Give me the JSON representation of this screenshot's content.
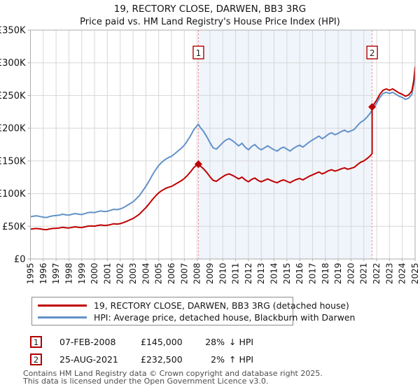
{
  "header": {
    "title": "19, RECTORY CLOSE, DARWEN, BB3 3RG",
    "subtitle": "Price paid vs. HM Land Registry's House Price Index (HPI)"
  },
  "chart_data": {
    "type": "line",
    "x_range": [
      1995,
      2025
    ],
    "y_range": [
      0,
      350000
    ],
    "x_ticks": [
      1995,
      1996,
      1997,
      1998,
      1999,
      2000,
      2001,
      2002,
      2003,
      2004,
      2005,
      2006,
      2007,
      2008,
      2009,
      2010,
      2011,
      2012,
      2013,
      2014,
      2015,
      2016,
      2017,
      2018,
      2019,
      2020,
      2021,
      2022,
      2023,
      2024,
      2025
    ],
    "y_ticks": [
      {
        "value": 0,
        "label": "£0"
      },
      {
        "value": 50000,
        "label": "£50K"
      },
      {
        "value": 100000,
        "label": "£100K"
      },
      {
        "value": 150000,
        "label": "£150K"
      },
      {
        "value": 200000,
        "label": "£200K"
      },
      {
        "value": 250000,
        "label": "£250K"
      },
      {
        "value": 300000,
        "label": "£300K"
      },
      {
        "value": 350000,
        "label": "£350K"
      }
    ],
    "grid": true,
    "legend_position": "bottom",
    "shaded_region": {
      "from": 2008.1,
      "to": 2021.65,
      "color": "#f0f4fb"
    },
    "event_lines": [
      {
        "label": "1",
        "x": 2008.1
      },
      {
        "label": "2",
        "x": 2021.65
      }
    ],
    "markers": [
      {
        "x": 2008.1,
        "y": 145000
      },
      {
        "x": 2021.65,
        "y": 232500
      }
    ],
    "series": [
      {
        "name": "HPI: Average price, detached house, Blackburn with Darwen",
        "color": "#6292c8",
        "points": [
          [
            1995.0,
            64500
          ],
          [
            1995.25,
            65500
          ],
          [
            1995.5,
            66000
          ],
          [
            1995.75,
            65000
          ],
          [
            1996.0,
            64000
          ],
          [
            1996.25,
            63500
          ],
          [
            1996.5,
            65000
          ],
          [
            1996.75,
            66000
          ],
          [
            1997.0,
            66500
          ],
          [
            1997.25,
            67000
          ],
          [
            1997.5,
            68500
          ],
          [
            1997.75,
            67500
          ],
          [
            1998.0,
            67000
          ],
          [
            1998.25,
            68500
          ],
          [
            1998.5,
            69500
          ],
          [
            1998.75,
            68500
          ],
          [
            1999.0,
            68000
          ],
          [
            1999.25,
            69500
          ],
          [
            1999.5,
            71000
          ],
          [
            1999.75,
            71500
          ],
          [
            2000.0,
            71000
          ],
          [
            2000.25,
            72500
          ],
          [
            2000.5,
            73500
          ],
          [
            2000.75,
            72500
          ],
          [
            2001.0,
            73000
          ],
          [
            2001.25,
            74500
          ],
          [
            2001.5,
            76000
          ],
          [
            2001.75,
            75500
          ],
          [
            2002.0,
            76500
          ],
          [
            2002.25,
            78500
          ],
          [
            2002.5,
            81500
          ],
          [
            2002.75,
            84500
          ],
          [
            2003.0,
            87500
          ],
          [
            2003.25,
            92000
          ],
          [
            2003.5,
            97000
          ],
          [
            2003.75,
            104000
          ],
          [
            2004.0,
            111000
          ],
          [
            2004.25,
            119000
          ],
          [
            2004.5,
            128000
          ],
          [
            2004.75,
            136000
          ],
          [
            2005.0,
            143000
          ],
          [
            2005.25,
            148000
          ],
          [
            2005.5,
            152000
          ],
          [
            2005.75,
            155000
          ],
          [
            2006.0,
            157000
          ],
          [
            2006.25,
            161000
          ],
          [
            2006.5,
            165000
          ],
          [
            2006.75,
            169000
          ],
          [
            2007.0,
            174000
          ],
          [
            2007.25,
            181000
          ],
          [
            2007.5,
            189000
          ],
          [
            2007.75,
            198000
          ],
          [
            2008.0,
            204000
          ],
          [
            2008.1,
            206000
          ],
          [
            2008.25,
            201000
          ],
          [
            2008.5,
            195000
          ],
          [
            2008.75,
            187000
          ],
          [
            2009.0,
            178000
          ],
          [
            2009.25,
            170000
          ],
          [
            2009.5,
            168000
          ],
          [
            2009.75,
            173000
          ],
          [
            2010.0,
            178000
          ],
          [
            2010.25,
            182000
          ],
          [
            2010.5,
            184000
          ],
          [
            2010.75,
            181000
          ],
          [
            2011.0,
            177000
          ],
          [
            2011.25,
            173000
          ],
          [
            2011.5,
            177000
          ],
          [
            2011.75,
            171000
          ],
          [
            2012.0,
            167000
          ],
          [
            2012.25,
            172000
          ],
          [
            2012.5,
            175000
          ],
          [
            2012.75,
            170000
          ],
          [
            2013.0,
            167000
          ],
          [
            2013.25,
            170000
          ],
          [
            2013.5,
            173000
          ],
          [
            2013.75,
            170000
          ],
          [
            2014.0,
            167000
          ],
          [
            2014.25,
            165000
          ],
          [
            2014.5,
            169000
          ],
          [
            2014.75,
            171000
          ],
          [
            2015.0,
            168000
          ],
          [
            2015.25,
            165000
          ],
          [
            2015.5,
            169000
          ],
          [
            2015.75,
            172000
          ],
          [
            2016.0,
            174000
          ],
          [
            2016.25,
            171000
          ],
          [
            2016.5,
            175000
          ],
          [
            2016.75,
            179000
          ],
          [
            2017.0,
            182000
          ],
          [
            2017.25,
            185000
          ],
          [
            2017.5,
            188000
          ],
          [
            2017.75,
            184000
          ],
          [
            2018.0,
            187000
          ],
          [
            2018.25,
            191000
          ],
          [
            2018.5,
            193000
          ],
          [
            2018.75,
            190000
          ],
          [
            2019.0,
            192000
          ],
          [
            2019.25,
            195000
          ],
          [
            2019.5,
            197000
          ],
          [
            2019.75,
            194000
          ],
          [
            2020.0,
            196000
          ],
          [
            2020.25,
            198000
          ],
          [
            2020.5,
            204000
          ],
          [
            2020.75,
            209000
          ],
          [
            2021.0,
            212000
          ],
          [
            2021.25,
            217000
          ],
          [
            2021.5,
            223000
          ],
          [
            2021.65,
            228000
          ],
          [
            2021.75,
            231000
          ],
          [
            2022.0,
            238000
          ],
          [
            2022.25,
            247000
          ],
          [
            2022.5,
            253000
          ],
          [
            2022.75,
            255000
          ],
          [
            2023.0,
            253000
          ],
          [
            2023.25,
            255000
          ],
          [
            2023.5,
            252000
          ],
          [
            2023.75,
            249000
          ],
          [
            2024.0,
            247000
          ],
          [
            2024.25,
            244000
          ],
          [
            2024.5,
            246000
          ],
          [
            2024.75,
            252000
          ],
          [
            2024.9,
            268000
          ],
          [
            2025.0,
            288000
          ]
        ]
      },
      {
        "name": "19, RECTORY CLOSE, DARWEN, BB3 3RG (detached house)",
        "color": "#c00000",
        "points": [
          [
            1995.0,
            45600
          ],
          [
            1995.25,
            46300
          ],
          [
            1995.5,
            46700
          ],
          [
            1995.75,
            46000
          ],
          [
            1996.0,
            45300
          ],
          [
            1996.25,
            44900
          ],
          [
            1996.5,
            46000
          ],
          [
            1996.75,
            46700
          ],
          [
            1997.0,
            47000
          ],
          [
            1997.25,
            47400
          ],
          [
            1997.5,
            48400
          ],
          [
            1997.75,
            47700
          ],
          [
            1998.0,
            47400
          ],
          [
            1998.25,
            48400
          ],
          [
            1998.5,
            49200
          ],
          [
            1998.75,
            48400
          ],
          [
            1999.0,
            48100
          ],
          [
            1999.25,
            49200
          ],
          [
            1999.5,
            50200
          ],
          [
            1999.75,
            50600
          ],
          [
            2000.0,
            50200
          ],
          [
            2000.25,
            51300
          ],
          [
            2000.5,
            52000
          ],
          [
            2000.75,
            51300
          ],
          [
            2001.0,
            51600
          ],
          [
            2001.25,
            52700
          ],
          [
            2001.5,
            53800
          ],
          [
            2001.75,
            53400
          ],
          [
            2002.0,
            54100
          ],
          [
            2002.25,
            55500
          ],
          [
            2002.5,
            57600
          ],
          [
            2002.75,
            59800
          ],
          [
            2003.0,
            61900
          ],
          [
            2003.25,
            65100
          ],
          [
            2003.5,
            68600
          ],
          [
            2003.75,
            73600
          ],
          [
            2004.0,
            78500
          ],
          [
            2004.25,
            84200
          ],
          [
            2004.5,
            90500
          ],
          [
            2004.75,
            96200
          ],
          [
            2005.0,
            101100
          ],
          [
            2005.25,
            104700
          ],
          [
            2005.5,
            107500
          ],
          [
            2005.75,
            109600
          ],
          [
            2006.0,
            111000
          ],
          [
            2006.25,
            113900
          ],
          [
            2006.5,
            116700
          ],
          [
            2006.75,
            119500
          ],
          [
            2007.0,
            123100
          ],
          [
            2007.25,
            128000
          ],
          [
            2007.5,
            133700
          ],
          [
            2007.75,
            140000
          ],
          [
            2008.0,
            144300
          ],
          [
            2008.1,
            145000
          ],
          [
            2008.25,
            142200
          ],
          [
            2008.5,
            137900
          ],
          [
            2008.75,
            132300
          ],
          [
            2009.0,
            125900
          ],
          [
            2009.25,
            120200
          ],
          [
            2009.5,
            118800
          ],
          [
            2009.75,
            122400
          ],
          [
            2010.0,
            125900
          ],
          [
            2010.25,
            128700
          ],
          [
            2010.5,
            130200
          ],
          [
            2010.75,
            128000
          ],
          [
            2011.0,
            125200
          ],
          [
            2011.25,
            122400
          ],
          [
            2011.5,
            125200
          ],
          [
            2011.75,
            121000
          ],
          [
            2012.0,
            118100
          ],
          [
            2012.25,
            121700
          ],
          [
            2012.5,
            123800
          ],
          [
            2012.75,
            120200
          ],
          [
            2013.0,
            118100
          ],
          [
            2013.25,
            120200
          ],
          [
            2013.5,
            122400
          ],
          [
            2013.75,
            120200
          ],
          [
            2014.0,
            118100
          ],
          [
            2014.25,
            116700
          ],
          [
            2014.5,
            119500
          ],
          [
            2014.75,
            121000
          ],
          [
            2015.0,
            118800
          ],
          [
            2015.25,
            116700
          ],
          [
            2015.5,
            119500
          ],
          [
            2015.75,
            121700
          ],
          [
            2016.0,
            123100
          ],
          [
            2016.25,
            121000
          ],
          [
            2016.5,
            123800
          ],
          [
            2016.75,
            126600
          ],
          [
            2017.0,
            128700
          ],
          [
            2017.25,
            130900
          ],
          [
            2017.5,
            133000
          ],
          [
            2017.75,
            130200
          ],
          [
            2018.0,
            132300
          ],
          [
            2018.25,
            135100
          ],
          [
            2018.5,
            136500
          ],
          [
            2018.75,
            134400
          ],
          [
            2019.0,
            135800
          ],
          [
            2019.25,
            138000
          ],
          [
            2019.5,
            139400
          ],
          [
            2019.75,
            137200
          ],
          [
            2020.0,
            138700
          ],
          [
            2020.25,
            140100
          ],
          [
            2020.5,
            144300
          ],
          [
            2020.75,
            147900
          ],
          [
            2021.0,
            150000
          ],
          [
            2021.25,
            153500
          ],
          [
            2021.5,
            157800
          ],
          [
            2021.65,
            161300
          ],
          [
            2021.65,
            232500
          ],
          [
            2021.75,
            235600
          ],
          [
            2022.0,
            242700
          ],
          [
            2022.25,
            251900
          ],
          [
            2022.5,
            258000
          ],
          [
            2022.75,
            260100
          ],
          [
            2023.0,
            258000
          ],
          [
            2023.25,
            260100
          ],
          [
            2023.5,
            257000
          ],
          [
            2023.75,
            253900
          ],
          [
            2024.0,
            251900
          ],
          [
            2024.25,
            248800
          ],
          [
            2024.5,
            250900
          ],
          [
            2024.75,
            257000
          ],
          [
            2024.9,
            273400
          ],
          [
            2025.0,
            293700
          ]
        ]
      }
    ]
  },
  "sales": [
    {
      "num": "1",
      "date": "07-FEB-2008",
      "price": "£145,000",
      "hpi_pct": "28%",
      "hpi_arrow": "↓",
      "hpi_text": "HPI"
    },
    {
      "num": "2",
      "date": "25-AUG-2021",
      "price": "£232,500",
      "hpi_pct": "2%",
      "hpi_arrow": "↑",
      "hpi_text": "HPI"
    }
  ],
  "footer": {
    "line1": "Contains HM Land Registry data © Crown copyright and database right 2025.",
    "line2": "This data is licensed under the Open Government Licence v3.0."
  },
  "colors": {
    "price_paid_line": "#c00000",
    "hpi_line": "#6292c8",
    "event_line": "#e98b8b",
    "event_box_border": "#b00000",
    "grid": "#d7d7d7",
    "plot_border": "#adadad",
    "shade": "#f0f4fb"
  }
}
